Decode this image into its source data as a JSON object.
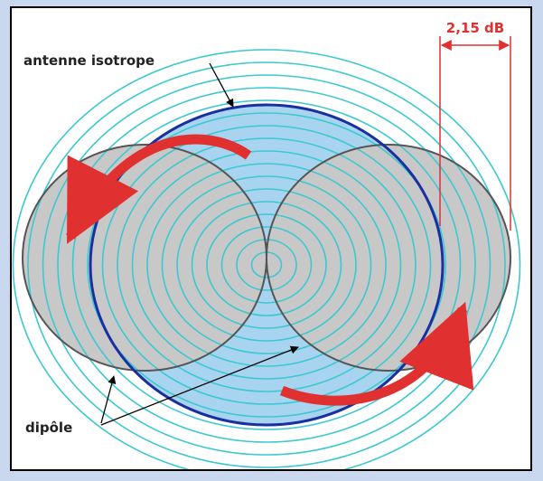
{
  "labels": {
    "isotropic": "antenne isotrope",
    "dipole": "dipôle",
    "gain": "2,15 dB"
  }
}
